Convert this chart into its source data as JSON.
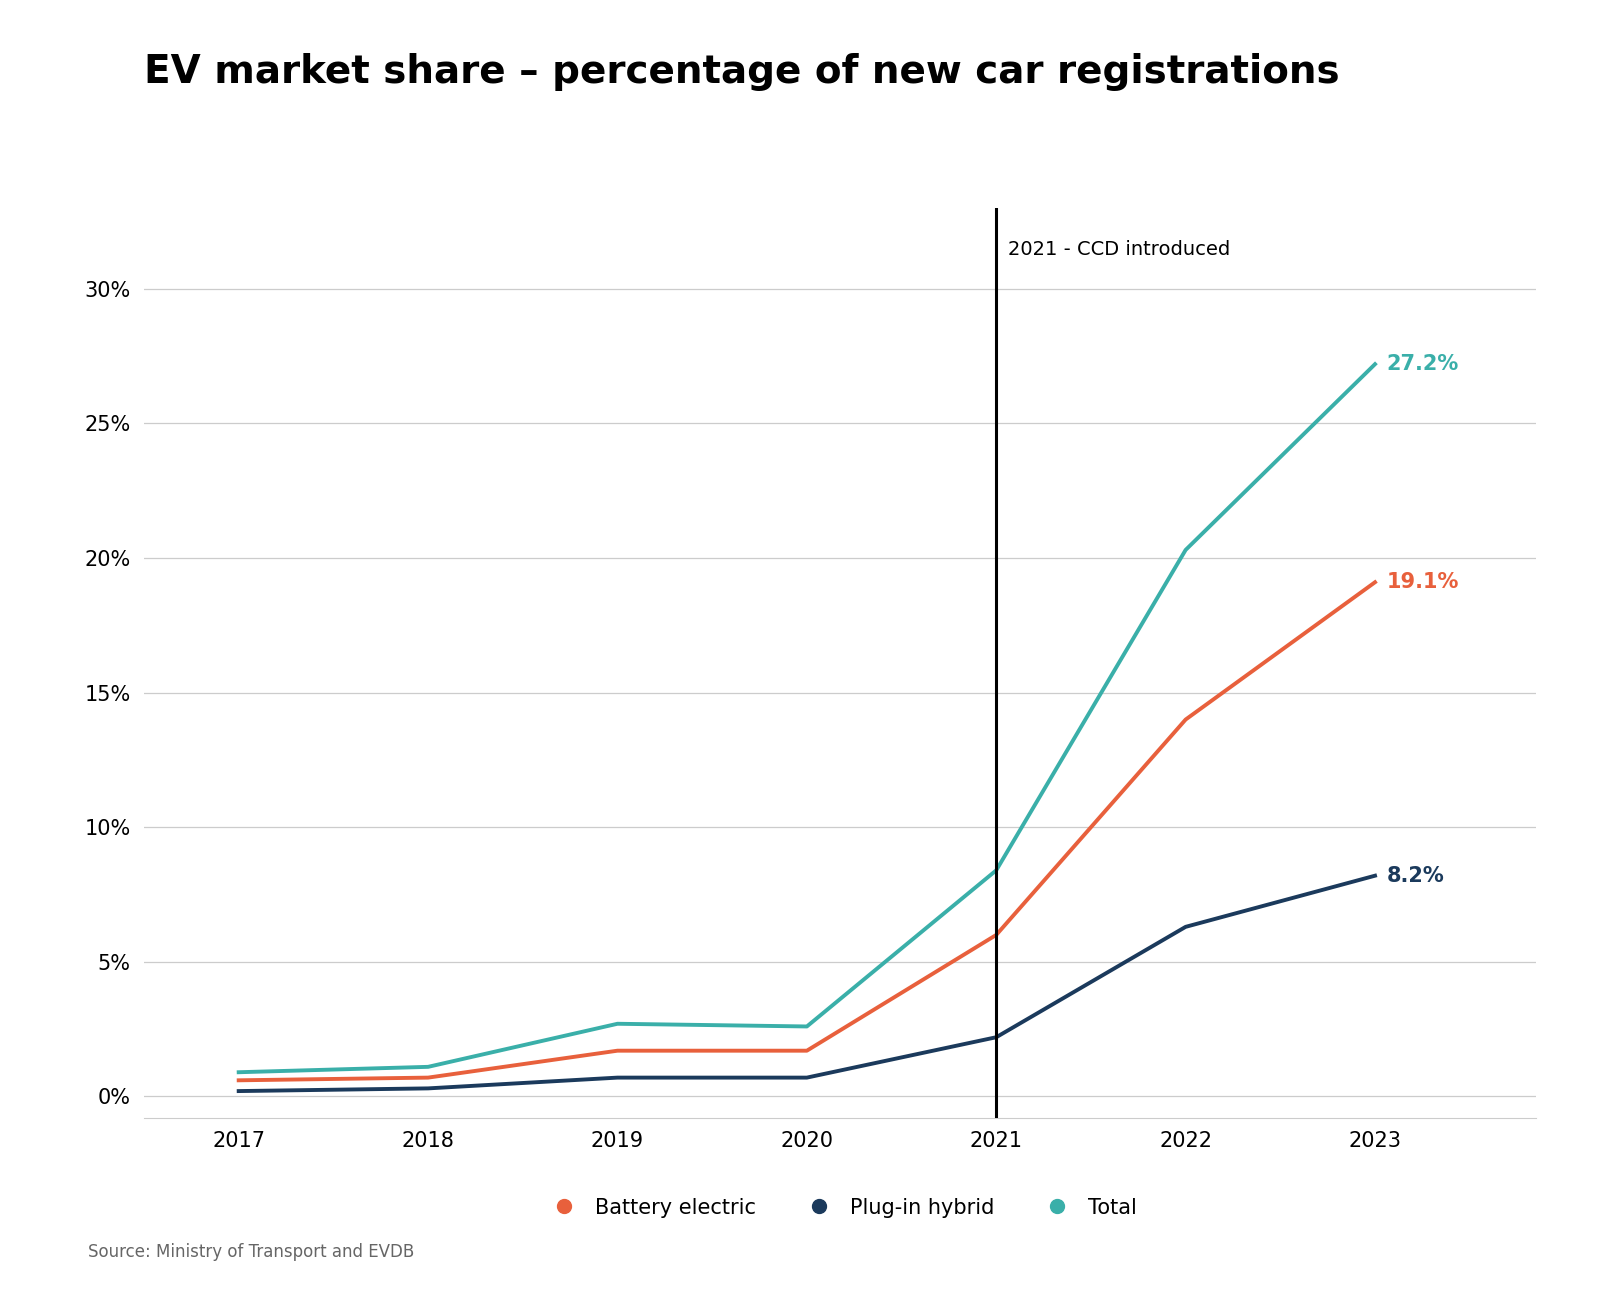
{
  "title": "EV market share – percentage of new car registrations",
  "years": [
    2017,
    2018,
    2019,
    2020,
    2021,
    2022,
    2023
  ],
  "battery_electric": [
    0.6,
    0.7,
    1.7,
    1.7,
    6.0,
    14.0,
    19.1
  ],
  "plug_in_hybrid": [
    0.2,
    0.3,
    0.7,
    0.7,
    2.2,
    6.3,
    8.2
  ],
  "total": [
    0.9,
    1.1,
    2.7,
    2.6,
    8.4,
    20.3,
    27.2
  ],
  "battery_electric_color": "#E8603C",
  "plug_in_hybrid_color": "#1B3A5C",
  "total_color": "#3AAFA9",
  "vline_x": 2021,
  "vline_label": "2021 - CCD introduced",
  "annotation_battery": "19.1%",
  "annotation_phev": "8.2%",
  "annotation_total": "27.2%",
  "ylabel_ticks": [
    0,
    5,
    10,
    15,
    20,
    25,
    30
  ],
  "ylim": [
    -0.8,
    33
  ],
  "xlim": [
    2016.5,
    2023.85
  ],
  "source": "Source: Ministry of Transport and EVDB",
  "background_color": "#ffffff",
  "grid_color": "#cccccc",
  "line_width": 2.8,
  "legend_labels": [
    "Battery electric",
    "Plug-in hybrid",
    "Total"
  ],
  "title_fontsize": 28,
  "tick_fontsize": 15,
  "annotation_fontsize": 15,
  "vline_label_fontsize": 14
}
